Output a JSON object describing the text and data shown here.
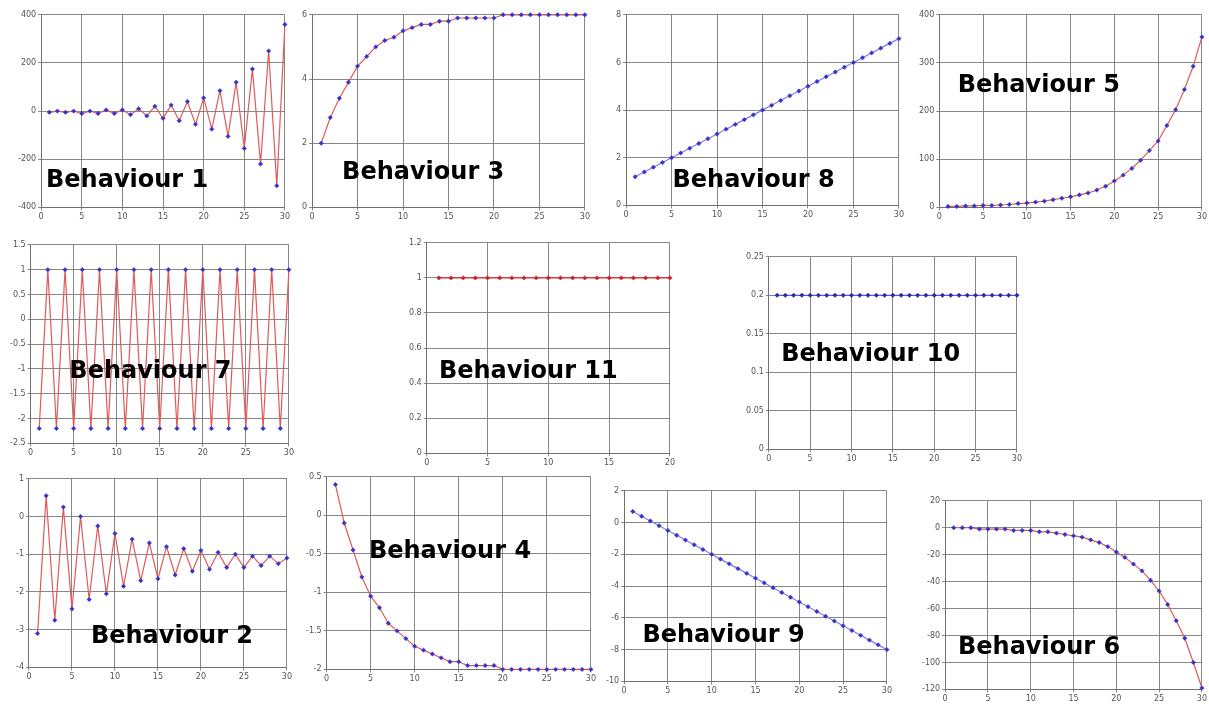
{
  "chart_data": [
    {
      "type": "line",
      "title": "Behaviour 1",
      "x": [
        1,
        2,
        3,
        4,
        5,
        6,
        7,
        8,
        9,
        10,
        11,
        12,
        13,
        14,
        15,
        16,
        17,
        18,
        19,
        20,
        21,
        22,
        23,
        24,
        25,
        26,
        27,
        28,
        29,
        30
      ],
      "series": [
        {
          "color": "#e05a5a",
          "colors": [
            "#3333cc",
            "#3333cc",
            "#3333cc",
            "#3333cc",
            "#3333cc",
            "#3333cc",
            "#3333cc",
            "#3333cc",
            "#3333cc",
            "#3333cc",
            "#3333cc",
            "#3333cc",
            "#3333cc",
            "#3333cc",
            "#3333cc",
            "#3333cc",
            "#3333cc",
            "#3333cc",
            "#3333cc",
            "#3333cc",
            "#3333cc",
            "#3333cc",
            "#3333cc",
            "#3333cc",
            "#3333cc",
            "#3333cc",
            "#3333cc",
            "#3333cc",
            "#3333cc",
            "#3333cc"
          ],
          "values": [
            -5,
            0,
            -5,
            0,
            -10,
            0,
            -10,
            5,
            -10,
            5,
            -15,
            10,
            -20,
            20,
            -30,
            25,
            -40,
            40,
            -55,
            55,
            -75,
            85,
            -105,
            120,
            -155,
            175,
            -220,
            250,
            -310,
            360
          ]
        }
      ],
      "xlim": [
        0,
        30
      ],
      "xticks": [
        0,
        5,
        10,
        15,
        20,
        25,
        30
      ],
      "ylim": [
        -400,
        400
      ],
      "yticks": [
        -400,
        -200,
        0,
        200,
        400
      ],
      "grid": true,
      "marker": "diamond"
    },
    {
      "type": "line",
      "title": "Behaviour 3",
      "x": [
        1,
        2,
        3,
        4,
        5,
        6,
        7,
        8,
        9,
        10,
        11,
        12,
        13,
        14,
        15,
        16,
        17,
        18,
        19,
        20,
        21,
        22,
        23,
        24,
        25,
        26,
        27,
        28,
        29,
        30
      ],
      "series": [
        {
          "color": "#e05a5a",
          "colors": [
            "#3333cc",
            "#3333cc",
            "#3333cc",
            "#3333cc",
            "#3333cc",
            "#3333cc",
            "#3333cc",
            "#3333cc",
            "#3333cc",
            "#3333cc",
            "#3333cc",
            "#3333cc",
            "#3333cc",
            "#3333cc",
            "#3333cc",
            "#3333cc",
            "#3333cc",
            "#3333cc",
            "#3333cc",
            "#3333cc",
            "#3333cc",
            "#3333cc",
            "#3333cc",
            "#3333cc",
            "#3333cc",
            "#3333cc",
            "#3333cc",
            "#3333cc",
            "#3333cc",
            "#3333cc"
          ],
          "values": [
            2,
            2.8,
            3.4,
            3.9,
            4.4,
            4.7,
            5,
            5.2,
            5.3,
            5.5,
            5.6,
            5.7,
            5.7,
            5.8,
            5.8,
            5.9,
            5.9,
            5.9,
            5.9,
            5.9,
            6,
            6,
            6,
            6,
            6,
            6,
            6,
            6,
            6,
            6
          ]
        }
      ],
      "xlim": [
        0,
        30
      ],
      "xticks": [
        0,
        5,
        10,
        15,
        20,
        25,
        30
      ],
      "ylim": [
        0,
        6
      ],
      "yticks": [
        0,
        2,
        4,
        6
      ],
      "grid": true,
      "marker": "diamond"
    },
    {
      "type": "line",
      "title": "Behaviour 8",
      "x": [
        1,
        2,
        3,
        4,
        5,
        6,
        7,
        8,
        9,
        10,
        11,
        12,
        13,
        14,
        15,
        16,
        17,
        18,
        19,
        20,
        21,
        22,
        23,
        24,
        25,
        26,
        27,
        28,
        29,
        30
      ],
      "series": [
        {
          "color": "#8a7ae0",
          "colors": [
            "#3333cc",
            "#3333cc",
            "#3333cc",
            "#3333cc",
            "#3333cc",
            "#3333cc",
            "#3333cc",
            "#3333cc",
            "#3333cc",
            "#3333cc",
            "#3333cc",
            "#3333cc",
            "#3333cc",
            "#3333cc",
            "#3333cc",
            "#3333cc",
            "#3333cc",
            "#3333cc",
            "#3333cc",
            "#3333cc",
            "#3333cc",
            "#3333cc",
            "#3333cc",
            "#3333cc",
            "#3333cc",
            "#3333cc",
            "#3333cc",
            "#3333cc",
            "#3333cc",
            "#3333cc"
          ],
          "values": [
            1.2,
            1.4,
            1.6,
            1.8,
            2,
            2.2,
            2.4,
            2.6,
            2.8,
            3,
            3.2,
            3.4,
            3.6,
            3.8,
            4,
            4.2,
            4.4,
            4.6,
            4.8,
            5,
            5.2,
            5.4,
            5.6,
            5.8,
            6,
            6.2,
            6.4,
            6.6,
            6.8,
            7
          ]
        }
      ],
      "xlim": [
        0,
        30
      ],
      "xticks": [
        0,
        5,
        10,
        15,
        20,
        25,
        30
      ],
      "ylim": [
        0,
        8
      ],
      "yticks": [
        0,
        2,
        4,
        6,
        8
      ],
      "grid": true,
      "marker": "diamond"
    },
    {
      "type": "line",
      "title": "Behaviour 5",
      "x": [
        1,
        2,
        3,
        4,
        5,
        6,
        7,
        8,
        9,
        10,
        11,
        12,
        13,
        14,
        15,
        16,
        17,
        18,
        19,
        20,
        21,
        22,
        23,
        24,
        25,
        26,
        27,
        28,
        29,
        30
      ],
      "series": [
        {
          "color": "#e05a5a",
          "colors": [
            "#3333cc",
            "#3333cc",
            "#3333cc",
            "#3333cc",
            "#3333cc",
            "#3333cc",
            "#3333cc",
            "#3333cc",
            "#3333cc",
            "#3333cc",
            "#3333cc",
            "#3333cc",
            "#3333cc",
            "#3333cc",
            "#3333cc",
            "#3333cc",
            "#3333cc",
            "#3333cc",
            "#3333cc",
            "#3333cc",
            "#3333cc",
            "#3333cc",
            "#3333cc",
            "#3333cc",
            "#3333cc",
            "#3333cc",
            "#3333cc",
            "#3333cc",
            "#3333cc",
            "#3333cc"
          ],
          "values": [
            2,
            2,
            3,
            3,
            4,
            4,
            5,
            6,
            8,
            9,
            11,
            13,
            16,
            19,
            22,
            26,
            30,
            36,
            44,
            55,
            67,
            81,
            98,
            118,
            138,
            170,
            203,
            245,
            293,
            354
          ]
        }
      ],
      "xlim": [
        0,
        30
      ],
      "xticks": [
        0,
        5,
        10,
        15,
        20,
        25,
        30
      ],
      "ylim": [
        0,
        400
      ],
      "yticks": [
        0,
        100,
        200,
        300,
        400
      ],
      "grid": true,
      "marker": "diamond"
    },
    {
      "type": "line",
      "title": "Behaviour 7",
      "x": [
        1,
        2,
        3,
        4,
        5,
        6,
        7,
        8,
        9,
        10,
        11,
        12,
        13,
        14,
        15,
        16,
        17,
        18,
        19,
        20,
        21,
        22,
        23,
        24,
        25,
        26,
        27,
        28,
        29,
        30
      ],
      "series": [
        {
          "color": "#e05a5a",
          "colors": [
            "#3333cc",
            "#3333cc",
            "#3333cc",
            "#3333cc",
            "#3333cc",
            "#3333cc",
            "#3333cc",
            "#3333cc",
            "#3333cc",
            "#3333cc",
            "#3333cc",
            "#3333cc",
            "#3333cc",
            "#3333cc",
            "#3333cc",
            "#3333cc",
            "#3333cc",
            "#3333cc",
            "#3333cc",
            "#3333cc",
            "#3333cc",
            "#3333cc",
            "#3333cc",
            "#3333cc",
            "#3333cc",
            "#3333cc",
            "#3333cc",
            "#3333cc",
            "#3333cc",
            "#3333cc"
          ],
          "values": [
            -2.2,
            1,
            -2.2,
            1,
            -2.2,
            1,
            -2.2,
            1,
            -2.2,
            1,
            -2.2,
            1,
            -2.2,
            1,
            -2.2,
            1,
            -2.2,
            1,
            -2.2,
            1,
            -2.2,
            1,
            -2.2,
            1,
            -2.2,
            1,
            -2.2,
            1,
            -2.2,
            1
          ]
        }
      ],
      "xlim": [
        0,
        30
      ],
      "xticks": [
        0,
        5,
        10,
        15,
        20,
        25,
        30
      ],
      "ylim": [
        -2.5,
        1.5
      ],
      "yticks": [
        -2.5,
        -2,
        -1.5,
        -1,
        -0.5,
        0,
        0.5,
        1,
        1.5
      ],
      "grid": true,
      "marker": "diamond"
    },
    {
      "type": "line",
      "title": "Behaviour 11",
      "x": [
        1,
        2,
        3,
        4,
        5,
        6,
        7,
        8,
        9,
        10,
        11,
        12,
        13,
        14,
        15,
        16,
        17,
        18,
        19,
        20
      ],
      "series": [
        {
          "color": "#e03030",
          "colors": [
            "#d02020",
            "#d02020",
            "#d02020",
            "#d02020",
            "#d02020",
            "#d02020",
            "#d02020",
            "#d02020",
            "#d02020",
            "#d02020",
            "#d02020",
            "#d02020",
            "#d02020",
            "#d02020",
            "#d02020",
            "#d02020",
            "#d02020",
            "#d02020",
            "#d02020",
            "#d02020"
          ],
          "values": [
            1,
            1,
            1,
            1,
            1,
            1,
            1,
            1,
            1,
            1,
            1,
            1,
            1,
            1,
            1,
            1,
            1,
            1,
            1,
            1
          ]
        }
      ],
      "xlim": [
        0,
        20
      ],
      "xticks": [
        0,
        5,
        10,
        15,
        20
      ],
      "ylim": [
        0,
        1.2
      ],
      "yticks": [
        0,
        0.2,
        0.4,
        0.6,
        0.8,
        1,
        1.2
      ],
      "grid": true,
      "marker": "diamond"
    },
    {
      "type": "line",
      "title": "Behaviour 10",
      "x": [
        1,
        2,
        3,
        4,
        5,
        6,
        7,
        8,
        9,
        10,
        11,
        12,
        13,
        14,
        15,
        16,
        17,
        18,
        19,
        20,
        21,
        22,
        23,
        24,
        25,
        26,
        27,
        28,
        29,
        30
      ],
      "series": [
        {
          "color": "#5a5ae0",
          "colors": [
            "#2a2aa0",
            "#2a2aa0",
            "#2a2aa0",
            "#2a2aa0",
            "#2a2aa0",
            "#2a2aa0",
            "#2a2aa0",
            "#2a2aa0",
            "#2a2aa0",
            "#2a2aa0",
            "#2a2aa0",
            "#2a2aa0",
            "#2a2aa0",
            "#2a2aa0",
            "#2a2aa0",
            "#2a2aa0",
            "#2a2aa0",
            "#2a2aa0",
            "#2a2aa0",
            "#2a2aa0",
            "#2a2aa0",
            "#2a2aa0",
            "#2a2aa0",
            "#2a2aa0",
            "#2a2aa0",
            "#2a2aa0",
            "#2a2aa0",
            "#2a2aa0",
            "#2a2aa0",
            "#2a2aa0"
          ],
          "values": [
            0.2,
            0.2,
            0.2,
            0.2,
            0.2,
            0.2,
            0.2,
            0.2,
            0.2,
            0.2,
            0.2,
            0.2,
            0.2,
            0.2,
            0.2,
            0.2,
            0.2,
            0.2,
            0.2,
            0.2,
            0.2,
            0.2,
            0.2,
            0.2,
            0.2,
            0.2,
            0.2,
            0.2,
            0.2,
            0.2
          ]
        }
      ],
      "xlim": [
        0,
        30
      ],
      "xticks": [
        0,
        5,
        10,
        15,
        20,
        25,
        30
      ],
      "ylim": [
        0,
        0.25
      ],
      "yticks": [
        0,
        0.05,
        0.1,
        0.15,
        0.2,
        0.25
      ],
      "grid": true,
      "marker": "diamond"
    },
    {
      "type": "line",
      "title": "Behaviour 2",
      "x": [
        1,
        2,
        3,
        4,
        5,
        6,
        7,
        8,
        9,
        10,
        11,
        12,
        13,
        14,
        15,
        16,
        17,
        18,
        19,
        20,
        21,
        22,
        23,
        24,
        25,
        26,
        27,
        28,
        29,
        30
      ],
      "series": [
        {
          "color": "#e05a5a",
          "colors": [
            "#3333cc",
            "#3333cc",
            "#3333cc",
            "#3333cc",
            "#3333cc",
            "#3333cc",
            "#3333cc",
            "#3333cc",
            "#3333cc",
            "#3333cc",
            "#3333cc",
            "#3333cc",
            "#3333cc",
            "#3333cc",
            "#3333cc",
            "#3333cc",
            "#3333cc",
            "#3333cc",
            "#3333cc",
            "#3333cc",
            "#3333cc",
            "#3333cc",
            "#3333cc",
            "#3333cc",
            "#3333cc",
            "#3333cc",
            "#3333cc",
            "#3333cc",
            "#3333cc",
            "#3333cc"
          ],
          "values": [
            -3.1,
            0.55,
            -2.75,
            0.25,
            -2.45,
            0,
            -2.2,
            -0.25,
            -2.05,
            -0.45,
            -1.85,
            -0.6,
            -1.7,
            -0.7,
            -1.65,
            -0.8,
            -1.55,
            -0.85,
            -1.45,
            -0.9,
            -1.4,
            -0.95,
            -1.35,
            -1,
            -1.35,
            -1.05,
            -1.3,
            -1.05,
            -1.25,
            -1.1
          ]
        }
      ],
      "xlim": [
        0,
        30
      ],
      "xticks": [
        0,
        5,
        10,
        15,
        20,
        25,
        30
      ],
      "ylim": [
        -4,
        1
      ],
      "yticks": [
        -4,
        -3,
        -2,
        -1,
        0,
        1
      ],
      "grid": true,
      "marker": "diamond"
    },
    {
      "type": "line",
      "title": "Behaviour 4",
      "x": [
        1,
        2,
        3,
        4,
        5,
        6,
        7,
        8,
        9,
        10,
        11,
        12,
        13,
        14,
        15,
        16,
        17,
        18,
        19,
        20,
        21,
        22,
        23,
        24,
        25,
        26,
        27,
        28,
        29,
        30
      ],
      "series": [
        {
          "color": "#e05a5a",
          "colors": [
            "#3333cc",
            "#3333cc",
            "#3333cc",
            "#3333cc",
            "#3333cc",
            "#3333cc",
            "#3333cc",
            "#3333cc",
            "#3333cc",
            "#3333cc",
            "#3333cc",
            "#3333cc",
            "#3333cc",
            "#3333cc",
            "#3333cc",
            "#3333cc",
            "#3333cc",
            "#3333cc",
            "#3333cc",
            "#3333cc",
            "#3333cc",
            "#3333cc",
            "#3333cc",
            "#3333cc",
            "#3333cc",
            "#3333cc",
            "#3333cc",
            "#3333cc",
            "#3333cc",
            "#3333cc"
          ],
          "values": [
            0.4,
            -0.1,
            -0.45,
            -0.8,
            -1.05,
            -1.2,
            -1.4,
            -1.5,
            -1.6,
            -1.7,
            -1.75,
            -1.8,
            -1.85,
            -1.9,
            -1.9,
            -1.95,
            -1.95,
            -1.95,
            -1.95,
            -2,
            -2,
            -2,
            -2,
            -2,
            -2,
            -2,
            -2,
            -2,
            -2,
            -2
          ]
        }
      ],
      "xlim": [
        0,
        30
      ],
      "xticks": [
        0,
        5,
        10,
        15,
        20,
        25,
        30
      ],
      "ylim": [
        -2,
        0.5
      ],
      "yticks": [
        -2,
        -1.5,
        -1,
        -0.5,
        0,
        0.5
      ],
      "grid": true,
      "marker": "diamond"
    },
    {
      "type": "line",
      "title": "Behaviour 9",
      "x": [
        1,
        2,
        3,
        4,
        5,
        6,
        7,
        8,
        9,
        10,
        11,
        12,
        13,
        14,
        15,
        16,
        17,
        18,
        19,
        20,
        21,
        22,
        23,
        24,
        25,
        26,
        27,
        28,
        29,
        30
      ],
      "series": [
        {
          "color": "#8a7ae0",
          "colors": [
            "#3333cc",
            "#3333cc",
            "#3333cc",
            "#3333cc",
            "#3333cc",
            "#3333cc",
            "#3333cc",
            "#3333cc",
            "#3333cc",
            "#3333cc",
            "#3333cc",
            "#3333cc",
            "#3333cc",
            "#3333cc",
            "#3333cc",
            "#3333cc",
            "#3333cc",
            "#3333cc",
            "#3333cc",
            "#3333cc",
            "#3333cc",
            "#3333cc",
            "#3333cc",
            "#3333cc",
            "#3333cc",
            "#3333cc",
            "#3333cc",
            "#3333cc",
            "#3333cc",
            "#3333cc"
          ],
          "values": [
            0.7,
            0.4,
            0.1,
            -0.2,
            -0.5,
            -0.8,
            -1.1,
            -1.4,
            -1.7,
            -2,
            -2.3,
            -2.6,
            -2.9,
            -3.2,
            -3.5,
            -3.8,
            -4.1,
            -4.4,
            -4.7,
            -5,
            -5.3,
            -5.6,
            -5.9,
            -6.2,
            -6.5,
            -6.8,
            -7.1,
            -7.4,
            -7.7,
            -8
          ]
        }
      ],
      "xlim": [
        0,
        30
      ],
      "xticks": [
        0,
        5,
        10,
        15,
        20,
        25,
        30
      ],
      "ylim": [
        -10,
        2
      ],
      "yticks": [
        -10,
        -8,
        -6,
        -4,
        -2,
        0,
        2
      ],
      "grid": true,
      "marker": "diamond"
    },
    {
      "type": "line",
      "title": "Behaviour 6",
      "x": [
        1,
        2,
        3,
        4,
        5,
        6,
        7,
        8,
        9,
        10,
        11,
        12,
        13,
        14,
        15,
        16,
        17,
        18,
        19,
        20,
        21,
        22,
        23,
        24,
        25,
        26,
        27,
        28,
        29,
        30
      ],
      "series": [
        {
          "color": "#e05a5a",
          "colors": [
            "#3333cc",
            "#3333cc",
            "#3333cc",
            "#3333cc",
            "#3333cc",
            "#3333cc",
            "#3333cc",
            "#3333cc",
            "#3333cc",
            "#3333cc",
            "#3333cc",
            "#3333cc",
            "#3333cc",
            "#3333cc",
            "#3333cc",
            "#3333cc",
            "#3333cc",
            "#3333cc",
            "#3333cc",
            "#3333cc",
            "#3333cc",
            "#3333cc",
            "#3333cc",
            "#3333cc",
            "#3333cc",
            "#3333cc",
            "#3333cc",
            "#3333cc",
            "#3333cc",
            "#3333cc"
          ],
          "values": [
            0,
            0,
            0,
            -1,
            -1,
            -1,
            -1,
            -2,
            -2,
            -2,
            -3,
            -3,
            -4,
            -5,
            -6,
            -7,
            -9,
            -11,
            -14,
            -18,
            -22,
            -27,
            -32,
            -39,
            -47,
            -57,
            -69,
            -82,
            -100,
            -119
          ]
        }
      ],
      "xlim": [
        0,
        30
      ],
      "xticks": [
        0,
        5,
        10,
        15,
        20,
        25,
        30
      ],
      "ylim": [
        -120,
        20
      ],
      "yticks": [
        -120,
        -100,
        -80,
        -60,
        -40,
        -20,
        0,
        20
      ],
      "grid": true,
      "marker": "diamond"
    }
  ]
}
